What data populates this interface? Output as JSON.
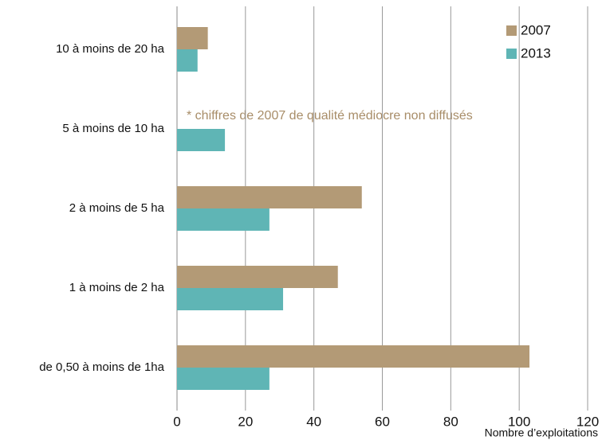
{
  "chart_data": {
    "type": "barh",
    "categories": [
      "10 à moins de 20 ha",
      "5 à moins de 10 ha",
      "2 à moins de 5 ha",
      "1 à moins de 2 ha",
      "de 0,50 à  moins de 1ha"
    ],
    "series": [
      {
        "name": "2007",
        "color": "#b39a76",
        "values": [
          9,
          null,
          54,
          47,
          103
        ]
      },
      {
        "name": "2013",
        "color": "#5fb5b5",
        "values": [
          6,
          14,
          27,
          31,
          27
        ]
      }
    ],
    "xlim": [
      0,
      120
    ],
    "xticks": [
      0,
      20,
      40,
      60,
      80,
      100,
      120
    ],
    "xlabel": "Nombre d’exploitations",
    "annotation": "* chiffres de 2007 de qualité médiocre non diffusés",
    "grid": true,
    "legend": "upper right"
  }
}
